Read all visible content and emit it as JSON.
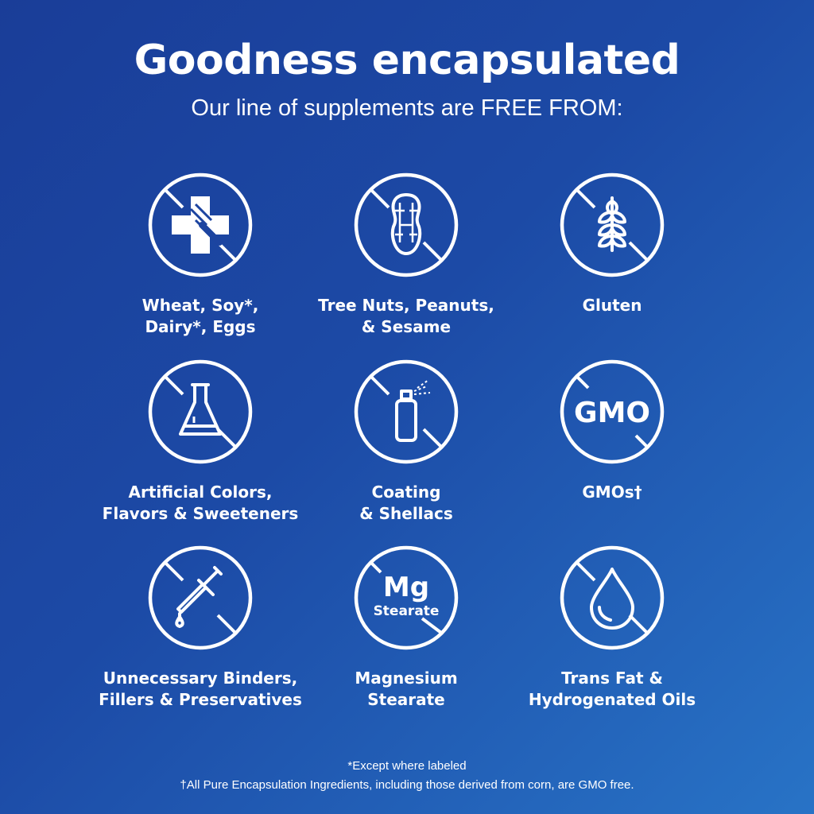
{
  "header": {
    "title": "Goodness encapsulated",
    "subtitle": "Our line of supplements are FREE FROM:"
  },
  "items": [
    {
      "icon": "allergen-cross-fork-icon",
      "label_lines": [
        "Wheat, Soy*,",
        "Dairy*, Eggs"
      ]
    },
    {
      "icon": "peanut-icon",
      "label_lines": [
        "Tree Nuts, Peanuts,",
        "& Sesame"
      ]
    },
    {
      "icon": "wheat-icon",
      "label_lines": [
        "Gluten"
      ]
    },
    {
      "icon": "flask-icon",
      "label_lines": [
        "Artificial Colors,",
        "Flavors & Sweeteners"
      ]
    },
    {
      "icon": "spray-can-icon",
      "label_lines": [
        "Coating",
        "& Shellacs"
      ]
    },
    {
      "icon": "gmo-icon",
      "icon_text": "GMO",
      "label_lines": [
        "GMOs†"
      ]
    },
    {
      "icon": "dropper-icon",
      "label_lines": [
        "Unnecessary Binders,",
        "Fillers & Preservatives"
      ]
    },
    {
      "icon": "mg-stearate-icon",
      "icon_text": "Mg",
      "icon_subtext": "Stearate",
      "label_lines": [
        "Magnesium",
        "Stearate"
      ]
    },
    {
      "icon": "oil-drop-icon",
      "label_lines": [
        "Trans Fat &",
        "Hydrogenated Oils"
      ]
    }
  ],
  "footnotes": [
    "*Except where labeled",
    "†All Pure Encapsulation Ingredients, including those derived from corn, are GMO free."
  ],
  "colors": {
    "background_start": "#1a3d98",
    "background_end": "#2873c6",
    "foreground": "#ffffff"
  }
}
